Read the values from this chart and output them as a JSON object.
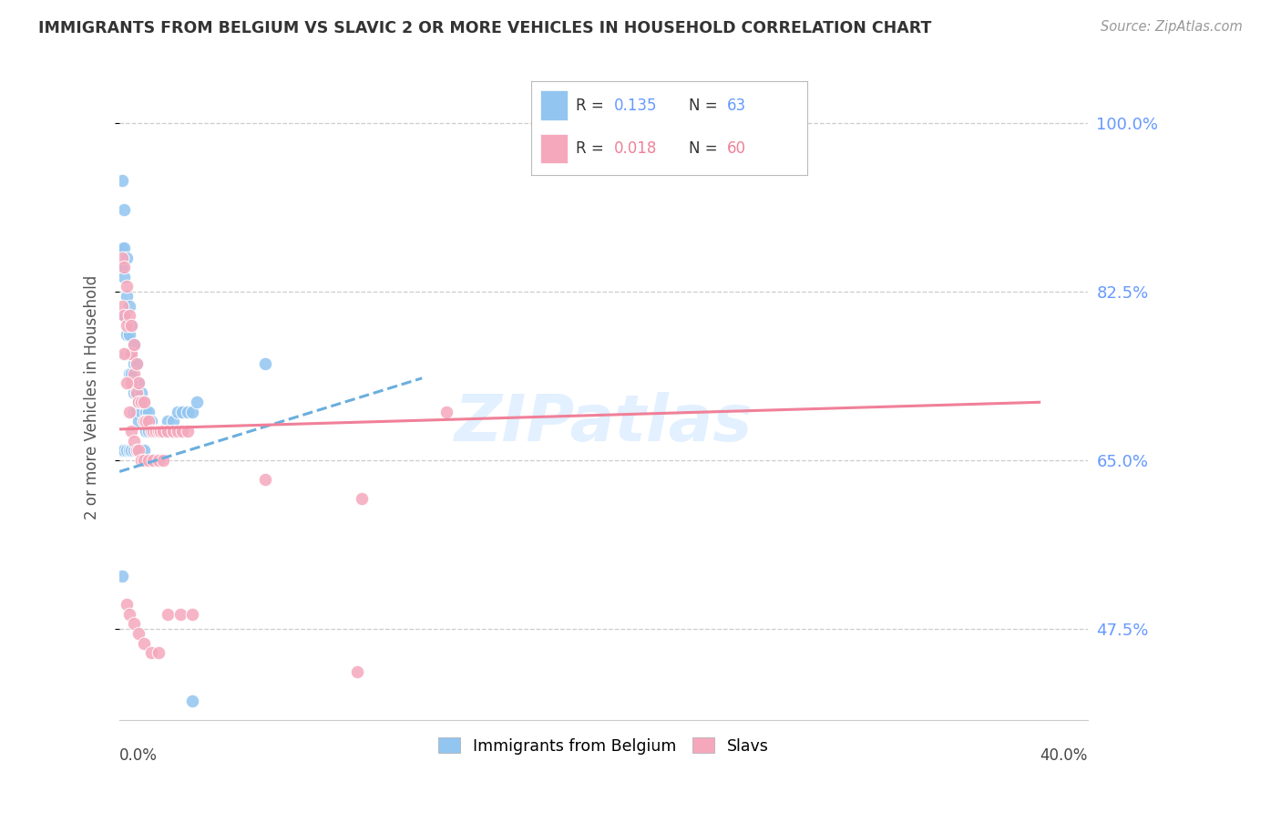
{
  "title": "IMMIGRANTS FROM BELGIUM VS SLAVIC 2 OR MORE VEHICLES IN HOUSEHOLD CORRELATION CHART",
  "source": "Source: ZipAtlas.com",
  "ylabel": "2 or more Vehicles in Household",
  "ytick_labels": [
    "100.0%",
    "82.5%",
    "65.0%",
    "47.5%"
  ],
  "ytick_values": [
    1.0,
    0.825,
    0.65,
    0.475
  ],
  "xmin": 0.0,
  "xmax": 0.4,
  "ymin": 0.38,
  "ymax": 1.05,
  "color_belgium": "#92C5F0",
  "color_slavs": "#F5A8BC",
  "trend_color_belgium": "#6AAEDE",
  "trend_color_slavs": "#F08098",
  "watermark": "ZIPatlas",
  "background_color": "#FFFFFF",
  "grid_color": "#CCCCCC",
  "right_axis_color": "#6699FF",
  "legend_r1_val": "0.135",
  "legend_n1_val": "63",
  "legend_r2_val": "0.018",
  "legend_n2_val": "60",
  "bel_trend_x0": 0.0,
  "bel_trend_y0": 0.638,
  "bel_trend_x1": 0.125,
  "bel_trend_y1": 0.735,
  "slav_trend_x0": 0.0,
  "slav_trend_y0": 0.682,
  "slav_trend_x1": 0.38,
  "slav_trend_y1": 0.71
}
